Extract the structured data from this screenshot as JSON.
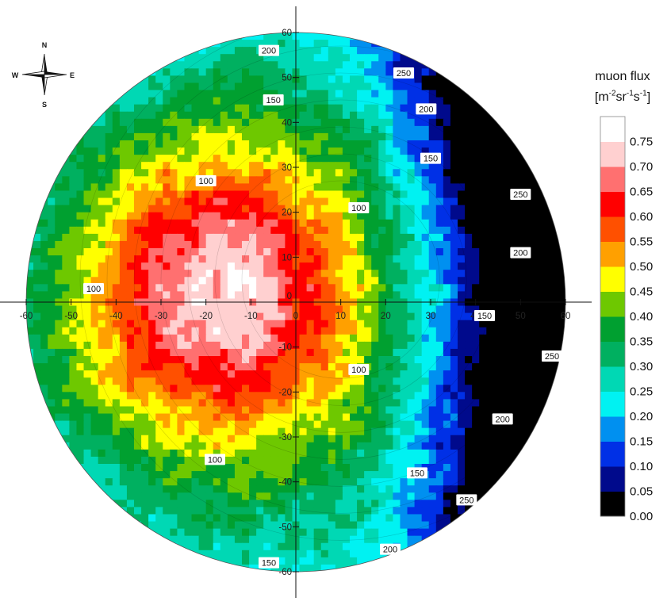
{
  "chart_data": {
    "type": "heatmap",
    "subtype": "polar contour map",
    "legend": {
      "title": "muon flux",
      "unit_base": "m",
      "unit_parts": [
        {
          "sym": "m",
          "exp": "-2"
        },
        {
          "sym": "sr",
          "exp": "-1"
        },
        {
          "sym": "s",
          "exp": "-1"
        }
      ],
      "levels": [
        0.0,
        0.05,
        0.1,
        0.15,
        0.2,
        0.25,
        0.3,
        0.35,
        0.4,
        0.45,
        0.5,
        0.55,
        0.6,
        0.65,
        0.7,
        0.75
      ],
      "level_labels": [
        "0.00",
        "0.05",
        "0.10",
        "0.15",
        "0.20",
        "0.25",
        "0.30",
        "0.35",
        "0.40",
        "0.45",
        "0.50",
        "0.55",
        "0.60",
        "0.65",
        "0.70",
        "0.75"
      ],
      "colors": [
        "#000000",
        "#000a8c",
        "#0030e6",
        "#0090f0",
        "#00f2f2",
        "#00d8b4",
        "#00b060",
        "#00a030",
        "#6ec800",
        "#ffff00",
        "#ffa000",
        "#ff5000",
        "#ff0000",
        "#ff7070",
        "#ffd0d0",
        "#ffffff"
      ],
      "placement": "right"
    },
    "x_axis": {
      "range": [
        -60,
        60
      ],
      "ticks": [
        -60,
        -50,
        -40,
        -30,
        -20,
        -10,
        0,
        10,
        20,
        30,
        40,
        50,
        60
      ],
      "tick_labels": [
        "-60",
        "-50",
        "-40",
        "-30",
        "-20",
        "-10",
        "0",
        "10",
        "20",
        "30",
        "40",
        "50",
        "60"
      ]
    },
    "y_axis": {
      "range": [
        -60,
        60
      ],
      "ticks": [
        -60,
        -50,
        -40,
        -30,
        -20,
        -10,
        0,
        10,
        20,
        30,
        40,
        50,
        60
      ],
      "tick_labels": [
        "-60",
        "-50",
        "-40",
        "-30",
        "-20",
        "-10",
        "0",
        "10",
        "20",
        "30",
        "40",
        "50",
        "60"
      ]
    },
    "flux_field": {
      "peak_center": [
        -17,
        2
      ],
      "peak_value": 0.75,
      "falloff_west": 40,
      "falloff_east": 22,
      "shoulder_value": 0.4
    },
    "contour_labels": [
      {
        "text": "100",
        "x": -20,
        "y": 27
      },
      {
        "text": "100",
        "x": 14,
        "y": 21
      },
      {
        "text": "100",
        "x": -45,
        "y": 3
      },
      {
        "text": "100",
        "x": 14,
        "y": -15
      },
      {
        "text": "100",
        "x": -18,
        "y": -35
      },
      {
        "text": "150",
        "x": -5,
        "y": 45
      },
      {
        "text": "150",
        "x": 30,
        "y": 32
      },
      {
        "text": "150",
        "x": 42,
        "y": -3
      },
      {
        "text": "150",
        "x": 27,
        "y": -38
      },
      {
        "text": "150",
        "x": -6,
        "y": -58
      },
      {
        "text": "200",
        "x": -6,
        "y": 56
      },
      {
        "text": "200",
        "x": 29,
        "y": 43
      },
      {
        "text": "200",
        "x": 50,
        "y": 11
      },
      {
        "text": "200",
        "x": 46,
        "y": -26
      },
      {
        "text": "200",
        "x": 21,
        "y": -55
      },
      {
        "text": "250",
        "x": 24,
        "y": 51
      },
      {
        "text": "250",
        "x": 50,
        "y": 24
      },
      {
        "text": "250",
        "x": 57,
        "y": -12
      },
      {
        "text": "250",
        "x": 38,
        "y": -44
      }
    ],
    "compass": {
      "north": "N",
      "south": "S",
      "east": "E",
      "west": "W"
    },
    "grid": false
  }
}
